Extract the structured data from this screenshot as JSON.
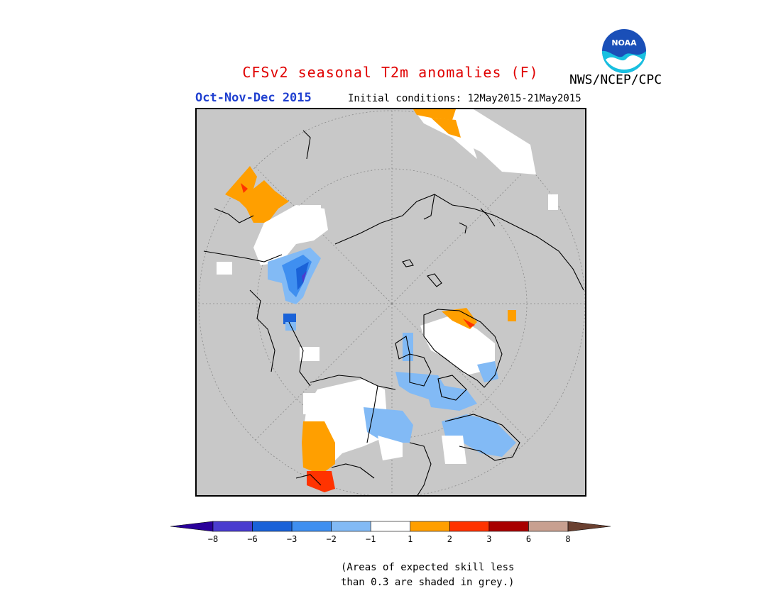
{
  "header": {
    "title": "CFSv2 seasonal T2m anomalies (F)",
    "season": "Oct-Nov-Dec 2015",
    "initial_conditions": "Initial conditions: 12May2015-21May2015",
    "agency": "NWS/NCEP/CPC",
    "logo_text": "NOAA"
  },
  "colors": {
    "title": "#e00000",
    "season": "#2040d0",
    "land_grey": "#c8c8c8",
    "bins": [
      "#2a009a",
      "#4a3ccf",
      "#1a62d8",
      "#3f8ff0",
      "#82baf5",
      "#ffffff",
      "#ff9f00",
      "#ff3300",
      "#a80000",
      "#c8a090",
      "#6a4030"
    ]
  },
  "legend": {
    "ticks": [
      "−8",
      "−6",
      "−3",
      "−2",
      "−1",
      "1",
      "2",
      "3",
      "6",
      "8"
    ]
  },
  "note": {
    "line1": "(Areas of expected skill less",
    "line2": "than 0.3 are shaded in grey.)"
  }
}
